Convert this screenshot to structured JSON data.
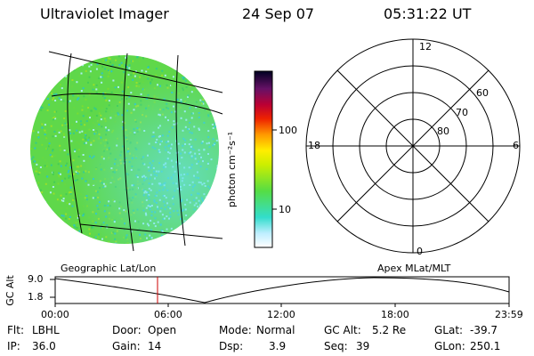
{
  "header": {
    "instrument": "Ultraviolet Imager",
    "date": "24 Sep 07",
    "time": "05:31:22 UT"
  },
  "colorbar": {
    "label": "photon cm⁻²s⁻¹",
    "ticks": [
      "100",
      "10"
    ]
  },
  "polar": {
    "mlt_labels": [
      "12",
      "18",
      "6",
      "0"
    ],
    "lat_labels": [
      "60",
      "70",
      "80"
    ]
  },
  "projection_labels": {
    "left": "Geographic Lat/Lon",
    "right": "Apex MLat/MLT"
  },
  "altitude_plot": {
    "ylabel": "GC Alt",
    "y_ticks": [
      "9.0",
      "1.8"
    ],
    "x_ticks": [
      "00:00",
      "06:00",
      "12:00",
      "18:00",
      "23:59"
    ],
    "current_time_marker": "05:31"
  },
  "status": {
    "flt_label": "Flt:",
    "flt_value": "LBHL",
    "ip_label": "IP:",
    "ip_value": "36.0",
    "door_label": "Door:",
    "door_value": "Open",
    "gain_label": "Gain:",
    "gain_value": "14",
    "mode_label": "Mode:",
    "mode_value": "Normal",
    "dsp_label": "Dsp:",
    "dsp_value": "3.9",
    "gcalt_label": "GC Alt:",
    "gcalt_value": "5.2 Re",
    "seq_label": "Seq:",
    "seq_value": "39",
    "glat_label": "GLat:",
    "glat_value": "-39.7",
    "glon_label": "GLon:",
    "glon_value": "250.1"
  },
  "colors": {
    "earth_base": "#5fd84a",
    "marker": "#cc0000"
  }
}
